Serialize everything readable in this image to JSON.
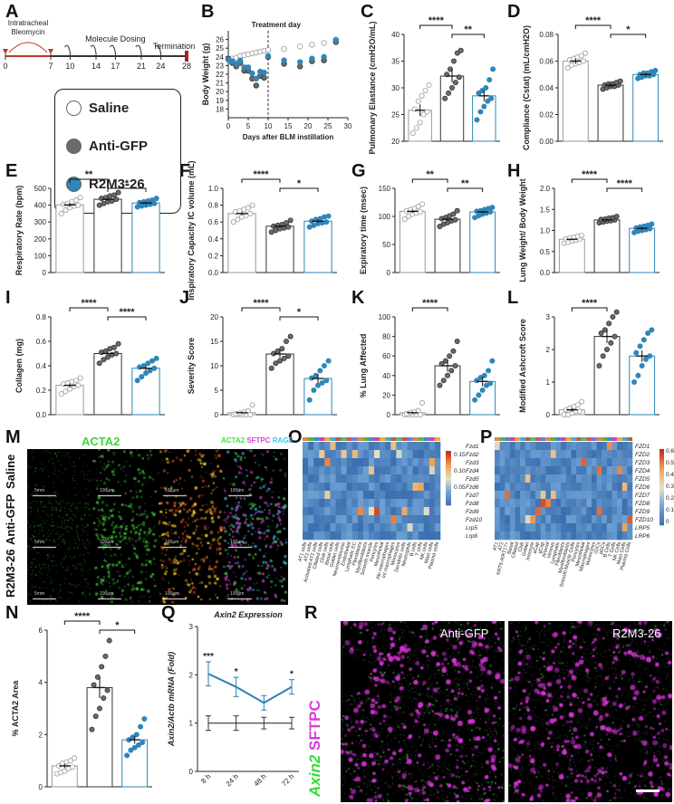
{
  "labels": {
    "A": "A",
    "B": "B",
    "C": "C",
    "D": "D",
    "E": "E",
    "F": "F",
    "G": "G",
    "H": "H",
    "I": "I",
    "J": "J",
    "K": "K",
    "L": "L",
    "M": "M",
    "N": "N",
    "O": "O",
    "P": "P",
    "Q": "Q",
    "R": "R"
  },
  "timeline": {
    "ticks": [
      "0",
      "7",
      "10",
      "14",
      "17",
      "21",
      "24",
      "28"
    ],
    "bleo_label": "Intratracheal Bleomycin",
    "dosing_label": "Molecule Dosing",
    "termination_label": "Termination"
  },
  "legend": {
    "items": [
      {
        "name": "Saline",
        "color": "#ffffff"
      },
      {
        "name": "Anti-GFP",
        "color": "#6b6b6b"
      },
      {
        "name": "R2M3-26",
        "color": "#2f86b8"
      }
    ]
  },
  "colors": {
    "saline": "#ffffff",
    "antigfp": "#6b6b6b",
    "r2m3": "#2f86b8",
    "r2m3_line": "#2c7fb0"
  },
  "chart_data": [
    {
      "id": "B",
      "type": "scatter",
      "title": "Treatment day",
      "xlabel": "Days after BLM instillation",
      "ylabel": "Body Weight (g)",
      "xlim": [
        0,
        30
      ],
      "ylim": [
        17,
        27
      ],
      "xticks": [
        0,
        5,
        10,
        15,
        20,
        25,
        30
      ],
      "yticks": [
        18,
        19,
        20,
        21,
        22,
        23,
        24,
        25,
        26
      ],
      "series": [
        {
          "name": "Saline",
          "x": [
            0,
            1,
            2,
            3,
            4,
            5,
            6,
            7,
            8,
            9,
            10,
            14,
            18,
            21,
            24,
            27
          ],
          "y": [
            23.7,
            23.8,
            23.9,
            24.1,
            24.2,
            24.3,
            24.4,
            24.5,
            24.6,
            24.7,
            24.8,
            24.9,
            25.2,
            25.4,
            25.6,
            26.0
          ]
        },
        {
          "name": "Anti-GFP",
          "x": [
            0,
            1,
            2,
            3,
            4,
            5,
            6,
            7,
            8,
            9,
            10,
            14,
            18,
            21,
            24,
            27
          ],
          "y": [
            23.8,
            23.3,
            22.9,
            23.3,
            22.4,
            22.4,
            21.5,
            20.7,
            21.8,
            21.6,
            24.0,
            23.2,
            22.9,
            23.5,
            23.6,
            25.7
          ]
        },
        {
          "name": "R2M3-26",
          "x": [
            0,
            1,
            2,
            3,
            4,
            5,
            6,
            7,
            8,
            9,
            10,
            14,
            18,
            21,
            24,
            27
          ],
          "y": [
            23.7,
            23.5,
            23.2,
            23.6,
            22.8,
            22.8,
            22.1,
            21.5,
            22.3,
            22.2,
            24.1,
            23.6,
            23.4,
            23.8,
            24.0,
            25.9
          ]
        }
      ]
    },
    {
      "id": "C",
      "ylabel": "Pulmonary Elastance (cmH2O/mL)",
      "ylim": [
        20,
        40
      ],
      "yticks": [
        20,
        25,
        30,
        35,
        40
      ],
      "means": [
        25.8,
        32.2,
        28.5
      ],
      "sem": [
        1.1,
        1.2,
        1.0
      ],
      "points": [
        [
          21.5,
          22.5,
          23.5,
          25.0,
          25.5,
          26.0,
          27.5,
          28.5,
          29.5,
          30.5
        ],
        [
          28.0,
          29.0,
          30.0,
          31.0,
          32.0,
          32.5,
          33.5,
          35.0,
          36.5,
          37.0
        ],
        [
          24.0,
          25.5,
          26.5,
          27.5,
          28.0,
          29.0,
          29.5,
          30.0,
          31.5,
          33.5
        ]
      ],
      "sig": [
        {
          "a": 0,
          "b": 1,
          "label": "****"
        },
        {
          "a": 1,
          "b": 2,
          "label": "**"
        }
      ]
    },
    {
      "id": "D",
      "ylabel": "Compliance (Cstat) (mL/cmH2O)",
      "ylim": [
        0,
        0.08
      ],
      "yticks": [
        0.0,
        0.02,
        0.04,
        0.06,
        0.08
      ],
      "means": [
        0.06,
        0.042,
        0.05
      ],
      "sem": [
        0.002,
        0.0015,
        0.001
      ],
      "points": [
        [
          0.055,
          0.057,
          0.058,
          0.059,
          0.06,
          0.061,
          0.062,
          0.063,
          0.064,
          0.066
        ],
        [
          0.039,
          0.04,
          0.041,
          0.041,
          0.042,
          0.042,
          0.043,
          0.043,
          0.044,
          0.045
        ],
        [
          0.047,
          0.048,
          0.049,
          0.049,
          0.05,
          0.05,
          0.051,
          0.051,
          0.052,
          0.053
        ]
      ],
      "sig": [
        {
          "a": 0,
          "b": 1,
          "label": "****"
        },
        {
          "a": 1,
          "b": 2,
          "label": "*"
        }
      ]
    },
    {
      "id": "E",
      "ylabel": "Respiratory Rate (bpm)",
      "ylim": [
        0,
        500
      ],
      "yticks": [
        0,
        100,
        200,
        300,
        400,
        500
      ],
      "means": [
        402,
        435,
        413
      ],
      "sem": [
        12,
        10,
        7
      ],
      "points": [
        [
          350,
          370,
          385,
          395,
          400,
          405,
          410,
          420,
          430,
          445
        ],
        [
          400,
          410,
          420,
          425,
          435,
          440,
          445,
          455,
          460,
          475
        ],
        [
          390,
          395,
          400,
          405,
          410,
          415,
          420,
          425,
          430,
          440
        ]
      ],
      "sig": [
        {
          "a": 0,
          "b": 1,
          "label": "**"
        },
        {
          "a": 1,
          "b": 2,
          "label": "*"
        }
      ]
    },
    {
      "id": "F",
      "ylabel": "Inspiratory Capacity IC volume (mL)",
      "ylim": [
        0,
        1.0
      ],
      "yticks": [
        0.0,
        0.2,
        0.4,
        0.6,
        0.8,
        1.0
      ],
      "means": [
        0.7,
        0.55,
        0.61
      ],
      "sem": [
        0.02,
        0.015,
        0.02
      ],
      "points": [
        [
          0.6,
          0.63,
          0.66,
          0.68,
          0.7,
          0.72,
          0.73,
          0.75,
          0.77,
          0.8
        ],
        [
          0.48,
          0.5,
          0.52,
          0.53,
          0.54,
          0.55,
          0.56,
          0.57,
          0.59,
          0.62
        ],
        [
          0.54,
          0.56,
          0.58,
          0.59,
          0.6,
          0.61,
          0.63,
          0.64,
          0.66,
          0.67
        ]
      ],
      "sig": [
        {
          "a": 0,
          "b": 1,
          "label": "****"
        },
        {
          "a": 1,
          "b": 2,
          "label": "*"
        }
      ]
    },
    {
      "id": "G",
      "ylabel": "Expiratory time (msec)",
      "ylim": [
        0,
        150
      ],
      "yticks": [
        0,
        50,
        100,
        150
      ],
      "means": [
        109,
        95,
        108
      ],
      "sem": [
        3,
        3,
        2
      ],
      "points": [
        [
          95,
          100,
          104,
          106,
          108,
          110,
          112,
          114,
          118,
          122
        ],
        [
          82,
          86,
          89,
          92,
          94,
          96,
          98,
          101,
          104,
          110
        ],
        [
          98,
          101,
          104,
          106,
          108,
          109,
          110,
          112,
          114,
          116
        ]
      ],
      "sig": [
        {
          "a": 0,
          "b": 1,
          "label": "**"
        },
        {
          "a": 1,
          "b": 2,
          "label": "**"
        }
      ]
    },
    {
      "id": "H",
      "ylabel": "Lung Weight/ Body Weight",
      "ylim": [
        0,
        2.0
      ],
      "yticks": [
        0.0,
        0.5,
        1.0,
        1.5,
        2.0
      ],
      "means": [
        0.79,
        1.25,
        1.05
      ],
      "sem": [
        0.02,
        0.02,
        0.03
      ],
      "points": [
        [
          0.7,
          0.72,
          0.75,
          0.77,
          0.79,
          0.8,
          0.82,
          0.84,
          0.86,
          0.88
        ],
        [
          1.18,
          1.2,
          1.22,
          1.23,
          1.25,
          1.26,
          1.27,
          1.29,
          1.3,
          1.33
        ],
        [
          0.95,
          0.98,
          1.0,
          1.02,
          1.04,
          1.06,
          1.08,
          1.1,
          1.12,
          1.15
        ]
      ],
      "sig": [
        {
          "a": 0,
          "b": 1,
          "label": "****"
        },
        {
          "a": 1,
          "b": 2,
          "label": "****"
        }
      ]
    },
    {
      "id": "I",
      "ylabel": "Collagen (mg)",
      "ylim": [
        0,
        0.8
      ],
      "yticks": [
        0.0,
        0.2,
        0.4,
        0.6,
        0.8
      ],
      "means": [
        0.24,
        0.5,
        0.38
      ],
      "sem": [
        0.015,
        0.015,
        0.02
      ],
      "points": [
        [
          0.17,
          0.19,
          0.21,
          0.23,
          0.24,
          0.25,
          0.26,
          0.27,
          0.28,
          0.3
        ],
        [
          0.42,
          0.45,
          0.47,
          0.49,
          0.5,
          0.51,
          0.52,
          0.54,
          0.55,
          0.58
        ],
        [
          0.28,
          0.31,
          0.34,
          0.36,
          0.38,
          0.39,
          0.4,
          0.42,
          0.44,
          0.46
        ]
      ],
      "sig": [
        {
          "a": 0,
          "b": 1,
          "label": "****"
        },
        {
          "a": 1,
          "b": 2,
          "label": "****"
        }
      ]
    },
    {
      "id": "J",
      "ylabel": "Severity Score",
      "ylim": [
        0,
        20
      ],
      "yticks": [
        0,
        5,
        10,
        15,
        20
      ],
      "means": [
        0.4,
        12.4,
        7.4
      ],
      "sem": [
        0.2,
        0.8,
        0.9
      ],
      "points": [
        [
          0,
          0,
          0,
          0,
          0,
          0.2,
          0.3,
          0.5,
          0.8,
          2.0
        ],
        [
          9.5,
          10.5,
          11.0,
          11.5,
          12.0,
          12.5,
          13.0,
          13.5,
          15.0,
          16.0
        ],
        [
          3.0,
          5.0,
          6.0,
          6.5,
          7.0,
          7.5,
          8.0,
          9.0,
          10.0,
          11.0
        ]
      ],
      "sig": [
        {
          "a": 0,
          "b": 1,
          "label": "****"
        },
        {
          "a": 1,
          "b": 2,
          "label": "*"
        }
      ]
    },
    {
      "id": "K",
      "ylabel": "% Lung Affected",
      "ylim": [
        0,
        100
      ],
      "yticks": [
        0,
        20,
        40,
        60,
        80,
        100
      ],
      "means": [
        2,
        50,
        34
      ],
      "sem": [
        1,
        6,
        5
      ],
      "points": [
        [
          0,
          0,
          0,
          0,
          0,
          1,
          2,
          3,
          4,
          12
        ],
        [
          30,
          35,
          40,
          45,
          50,
          52,
          55,
          60,
          65,
          75
        ],
        [
          15,
          20,
          25,
          30,
          32,
          35,
          38,
          40,
          45,
          55
        ]
      ],
      "sig": [
        {
          "a": 0,
          "b": 1,
          "label": "****"
        }
      ]
    },
    {
      "id": "L",
      "ylabel": "Modified Ashcroft Score",
      "ylim": [
        0,
        3
      ],
      "yticks": [
        0,
        1,
        2,
        3
      ],
      "means": [
        0.15,
        2.4,
        1.8
      ],
      "sem": [
        0.06,
        0.2,
        0.18
      ],
      "points": [
        [
          0,
          0,
          0.05,
          0.1,
          0.1,
          0.15,
          0.2,
          0.25,
          0.3,
          0.4
        ],
        [
          1.5,
          1.8,
          2.0,
          2.2,
          2.4,
          2.5,
          2.6,
          2.8,
          3.0,
          3.2
        ],
        [
          1.0,
          1.2,
          1.5,
          1.7,
          1.8,
          1.9,
          2.1,
          2.3,
          2.5,
          2.6
        ]
      ],
      "sig": [
        {
          "a": 0,
          "b": 1,
          "label": "****"
        }
      ]
    },
    {
      "id": "N",
      "ylabel": "% ACTA2 Area",
      "ylim": [
        0,
        6
      ],
      "yticks": [
        0,
        2,
        4,
        6
      ],
      "means": [
        0.8,
        3.8,
        1.8
      ],
      "sem": [
        0.08,
        0.4,
        0.15
      ],
      "points": [
        [
          0.5,
          0.55,
          0.6,
          0.7,
          0.75,
          0.8,
          0.9,
          0.95,
          1.0,
          1.1
        ],
        [
          2.2,
          2.7,
          3.0,
          3.4,
          3.7,
          3.9,
          4.2,
          4.6,
          5.0,
          5.6
        ],
        [
          1.2,
          1.4,
          1.5,
          1.6,
          1.7,
          1.8,
          1.9,
          2.0,
          2.3,
          2.6
        ]
      ],
      "sig": [
        {
          "a": 0,
          "b": 1,
          "label": "****"
        },
        {
          "a": 1,
          "b": 2,
          "label": "*"
        }
      ]
    },
    {
      "id": "Q",
      "type": "line",
      "title": "Axin2 Expression",
      "ylabel": "Axin2/Actb mRNA (Fold)",
      "ylim": [
        0,
        3
      ],
      "yticks": [
        0,
        1,
        2,
        3
      ],
      "categories": [
        "8 h",
        "24 h",
        "48 h",
        "72 h"
      ],
      "series": [
        {
          "name": "Anti-GFP",
          "values": [
            1.0,
            1.0,
            1.0,
            1.0
          ],
          "err": [
            0.15,
            0.15,
            0.12,
            0.12
          ]
        },
        {
          "name": "R2M3-26",
          "values": [
            2.02,
            1.75,
            1.42,
            1.75
          ],
          "err": [
            0.25,
            0.2,
            0.15,
            0.15
          ]
        }
      ],
      "sig": [
        "***",
        "*",
        "",
        "*"
      ]
    }
  ],
  "heat_O": {
    "genes": [
      "Fzd1",
      "Fzd2",
      "Fzd3",
      "Fzd4",
      "Fzd5",
      "Fzd6",
      "Fzd7",
      "Fzd8",
      "Fzd9",
      "Fzd10",
      "Lrp5",
      "Lrp6"
    ],
    "scale_ticks": [
      "0.15",
      "0.10",
      "0.05"
    ],
    "cells": [
      "AT1 cells",
      "AT2 cells",
      "Activated AT2 cells",
      "Ciliated cells",
      "Club cells",
      "Basal cells",
      "Goblet cells",
      "Neuroendocrine",
      "Endothelial",
      "Lymphatic EC",
      "Fibroblasts",
      "Myofibroblasts",
      "Smooth muscle",
      "Pericytes",
      "Mesothelial",
      "Alv macrophages",
      "Int macrophages",
      "Monocytes",
      "Dendritic cells",
      "Neutrophils",
      "B cells",
      "T cells",
      "NK cells",
      "Mast cells",
      "Plasma cells"
    ]
  },
  "heat_P": {
    "genes": [
      "FZD1",
      "FZD2",
      "FZD3",
      "FZD4",
      "FZD5",
      "FZD6",
      "FZD7",
      "FZD8",
      "FZD9",
      "FZD10",
      "LRP5",
      "LRP6"
    ],
    "scale_ticks": [
      "0.6",
      "0.5",
      "0.4",
      "0.3",
      "0.2",
      "0.1",
      "0"
    ],
    "cells": [
      "AT1",
      "AT2",
      "KRT5-/KRT17+",
      "Basal",
      "Ciliated",
      "Club",
      "Goblet",
      "Ionocyte",
      "aCap",
      "gCap",
      "Arterial",
      "Venous",
      "Lymphatic",
      "Fibroblasts",
      "Myofibroblasts",
      "Smooth Muscle Cells",
      "Pericytes",
      "Mesothelial",
      "Macrophages",
      "Monocytes",
      "cDCs",
      "pDCs",
      "B Cells",
      "T Cells",
      "NK Cells",
      "Mast Cells",
      "Plasma Cells"
    ]
  },
  "micro_M": {
    "title": "ACTA2",
    "merge_labels": [
      {
        "t": "ACTA2",
        "c": "#3ee63e"
      },
      {
        "t": "SFTPC",
        "c": "#e040e0"
      },
      {
        "t": "RAGE",
        "c": "#40c8e8"
      }
    ],
    "rows": [
      "Saline",
      "Anti-GFP",
      "R2M3-26"
    ],
    "scales": [
      "5mm",
      "100µm",
      "100µm",
      "100µm"
    ]
  },
  "micro_R": {
    "y_label_a": "Axin2",
    "y_label_b": "SFTPC",
    "left_title": "Anti-GFP",
    "right_title": "R2M3-26"
  }
}
